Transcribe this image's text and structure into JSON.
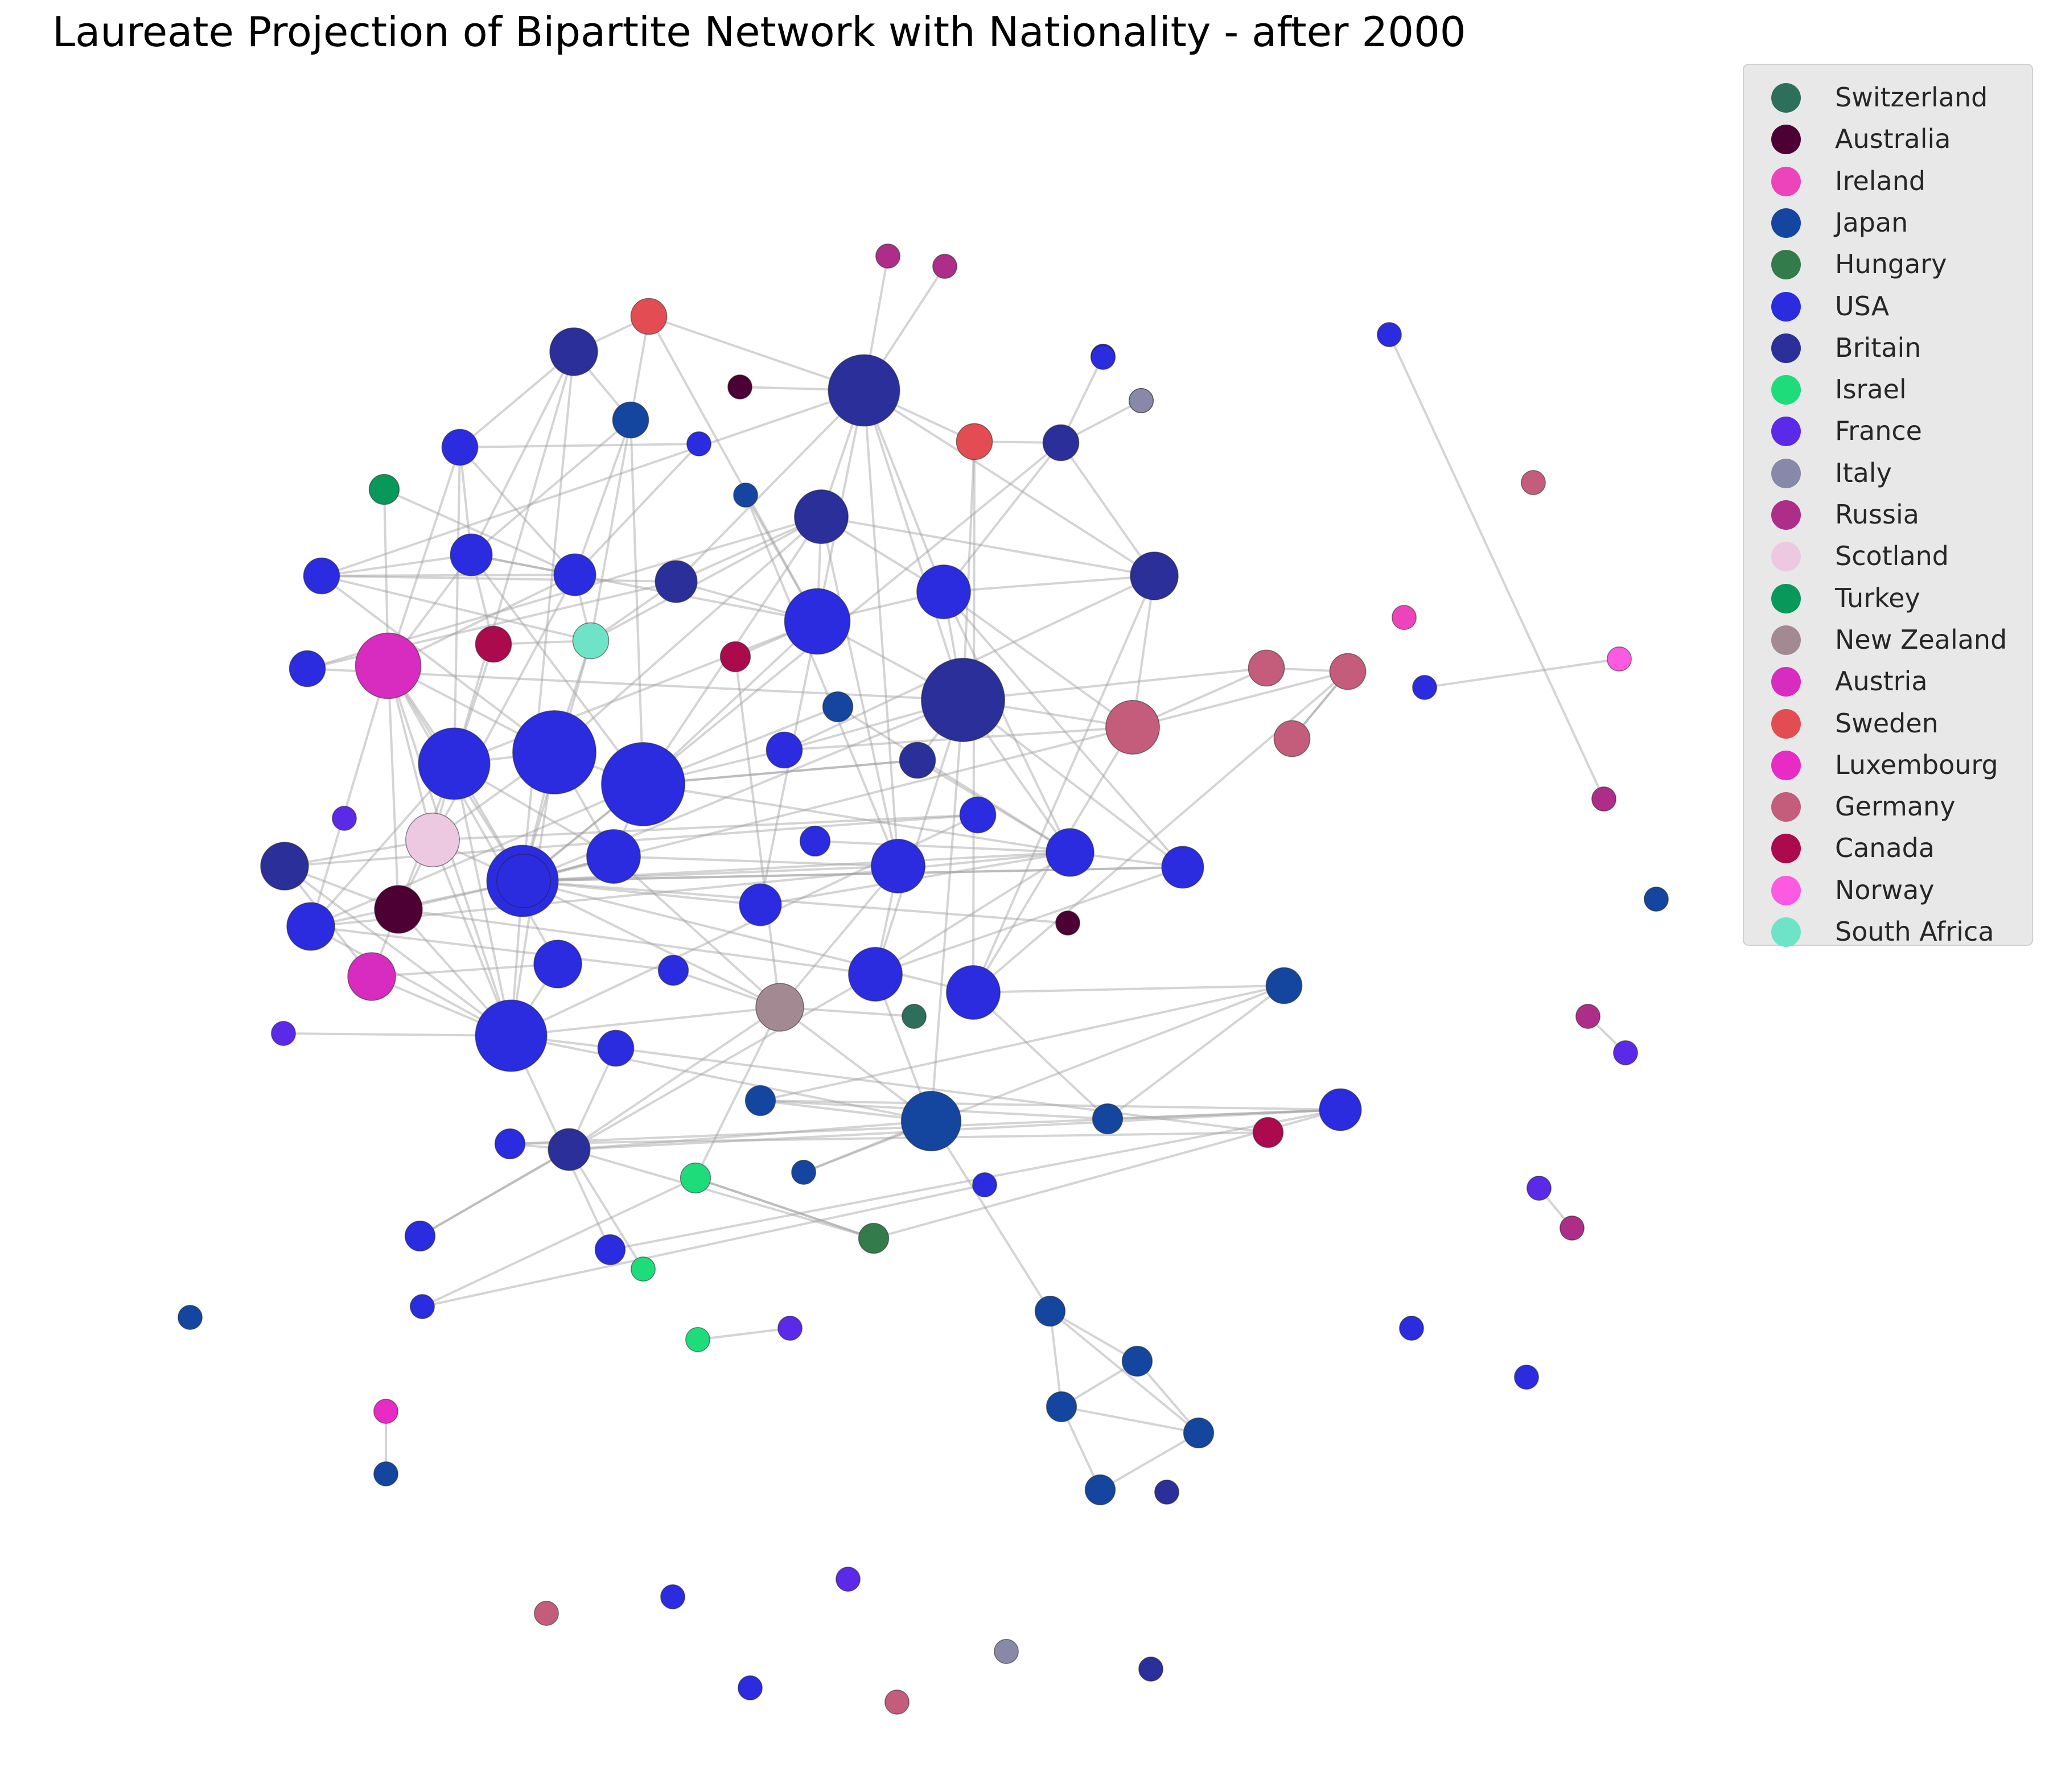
{
  "title": "Laureate Projection of Bipartite Network with Nationality - after 2000",
  "colors": {
    "Switzerland": "#2e6f5c",
    "Australia": "#4d0033",
    "Ireland": "#ee44bb",
    "Japan": "#1446a0",
    "Hungary": "#347b4c",
    "USA": "#2b2be0",
    "Britain": "#2a2f9a",
    "Israel": "#1edc7a",
    "France": "#5a2ae8",
    "Italy": "#8888a8",
    "Russia": "#ad2d88",
    "Scotland": "#ecc9e1",
    "Turkey": "#08985a",
    "New Zealand": "#a38a92",
    "Austria": "#d82bc0",
    "Sweden": "#e44c54",
    "Luxembourg": "#e92bc6",
    "Germany": "#c45c7b",
    "Canada": "#ab0a4c",
    "Norway": "#fb5ae1",
    "South Africa": "#6fe3c7"
  },
  "legend": [
    {
      "label": "Switzerland"
    },
    {
      "label": "Australia"
    },
    {
      "label": "Ireland"
    },
    {
      "label": "Japan"
    },
    {
      "label": "Hungary"
    },
    {
      "label": "USA"
    },
    {
      "label": "Britain"
    },
    {
      "label": "Israel"
    },
    {
      "label": "France"
    },
    {
      "label": "Italy"
    },
    {
      "label": "Russia"
    },
    {
      "label": "Scotland"
    },
    {
      "label": "Turkey"
    },
    {
      "label": "New Zealand"
    },
    {
      "label": "Austria"
    },
    {
      "label": "Sweden"
    },
    {
      "label": "Luxembourg"
    },
    {
      "label": "Germany"
    },
    {
      "label": "Canada"
    },
    {
      "label": "Norway"
    },
    {
      "label": "South Africa"
    }
  ],
  "nodes": [
    {
      "n": "Russia",
      "d": 2
    },
    {
      "n": "Russia",
      "d": 2
    },
    {
      "n": "Sweden",
      "d": 6
    },
    {
      "n": "Britain",
      "d": 10
    },
    {
      "n": "Australia",
      "d": 2
    },
    {
      "n": "Britain",
      "d": 18
    },
    {
      "n": "Japan",
      "d": 6
    },
    {
      "n": "USA",
      "d": 2
    },
    {
      "n": "USA",
      "d": 6
    },
    {
      "n": "Sweden",
      "d": 6
    },
    {
      "n": "Britain",
      "d": 6
    },
    {
      "n": "Britain",
      "d": 2
    },
    {
      "n": "Britain",
      "d": 2
    },
    {
      "n": "Turkey",
      "d": 4
    },
    {
      "n": "Japan",
      "d": 2
    },
    {
      "n": "Britain",
      "d": 12
    },
    {
      "n": "USA",
      "d": 8
    },
    {
      "n": "USA",
      "d": 8
    },
    {
      "n": "USA",
      "d": 6
    },
    {
      "n": "Britain",
      "d": 8
    },
    {
      "n": "USA",
      "d": 16
    },
    {
      "n": "USA",
      "d": 12
    },
    {
      "n": "Britain",
      "d": 10
    },
    {
      "n": "Canada",
      "d": 6
    },
    {
      "n": "South Africa",
      "d": 6
    },
    {
      "n": "Canada",
      "d": 4
    },
    {
      "n": "Austria",
      "d": 16
    },
    {
      "n": "USA",
      "d": 6
    },
    {
      "n": "Britain",
      "d": 22
    },
    {
      "n": "Germany",
      "d": 6
    },
    {
      "n": "Germany",
      "d": 6
    },
    {
      "n": "Germany",
      "d": 12
    },
    {
      "n": "Germany",
      "d": 6
    },
    {
      "n": "Japan",
      "d": 4
    },
    {
      "n": "USA",
      "d": 18
    },
    {
      "n": "USA",
      "d": 22
    },
    {
      "n": "USA",
      "d": 22
    },
    {
      "n": "USA",
      "d": 6
    },
    {
      "n": "Britain",
      "d": 6
    },
    {
      "n": "USA",
      "d": 6
    },
    {
      "n": "France",
      "d": 2
    },
    {
      "n": "Scotland",
      "d": 12
    },
    {
      "n": "USA",
      "d": 4
    },
    {
      "n": "USA",
      "d": 18
    },
    {
      "n": "USA",
      "d": 12
    },
    {
      "n": "Britain",
      "d": 10
    },
    {
      "n": "USA",
      "d": 8
    },
    {
      "n": "USA",
      "d": 12
    },
    {
      "n": "USA",
      "d": 10
    },
    {
      "n": "USA",
      "d": 8
    },
    {
      "n": "Australia",
      "d": 10
    },
    {
      "n": "USA",
      "d": 10
    },
    {
      "n": "USA",
      "d": 12
    },
    {
      "n": "Australia",
      "d": 2
    },
    {
      "n": "USA",
      "d": 10
    },
    {
      "n": "Austria",
      "d": 10
    },
    {
      "n": "USA",
      "d": 4
    },
    {
      "n": "New Zealand",
      "d": 10
    },
    {
      "n": "Switzerland",
      "d": 2
    },
    {
      "n": "USA",
      "d": 12
    },
    {
      "n": "USA",
      "d": 18
    },
    {
      "n": "USA",
      "d": 6
    },
    {
      "n": "France",
      "d": 2
    },
    {
      "n": "USA",
      "d": 12
    },
    {
      "n": "Japan",
      "d": 6
    },
    {
      "n": "Japan",
      "d": 14
    },
    {
      "n": "Japan",
      "d": 4
    },
    {
      "n": "Japan",
      "d": 4
    },
    {
      "n": "USA",
      "d": 2
    },
    {
      "n": "Canada",
      "d": 4
    },
    {
      "n": "USA",
      "d": 4
    },
    {
      "n": "Britain",
      "d": 8
    },
    {
      "n": "Israel",
      "d": 4
    },
    {
      "n": "Japan",
      "d": 2
    },
    {
      "n": "USA",
      "d": 8
    },
    {
      "n": "Hungary",
      "d": 4
    },
    {
      "n": "USA",
      "d": 4
    },
    {
      "n": "USA",
      "d": 4
    },
    {
      "n": "Israel",
      "d": 2
    },
    {
      "n": "USA",
      "d": 2
    },
    {
      "n": "Israel",
      "d": 2
    },
    {
      "n": "France",
      "d": 2
    },
    {
      "n": "Luxembourg",
      "d": 2
    },
    {
      "n": "Japan",
      "d": 2
    },
    {
      "n": "Japan",
      "d": 4
    },
    {
      "n": "Japan",
      "d": 4
    },
    {
      "n": "Japan",
      "d": 4
    },
    {
      "n": "Japan",
      "d": 4
    },
    {
      "n": "Japan",
      "d": 4
    },
    {
      "n": "Britain",
      "d": 2
    },
    {
      "n": "USA",
      "d": 2
    },
    {
      "n": "Italy",
      "d": 2
    },
    {
      "n": "Germany",
      "d": 2
    },
    {
      "n": "Ireland",
      "d": 2
    },
    {
      "n": "Norway",
      "d": 2
    },
    {
      "n": "USA",
      "d": 2
    },
    {
      "n": "USA",
      "d": 2
    },
    {
      "n": "Russia",
      "d": 2
    },
    {
      "n": "Russia",
      "d": 2
    },
    {
      "n": "France",
      "d": 2
    },
    {
      "n": "France",
      "d": 2
    },
    {
      "n": "Russia",
      "d": 2
    },
    {
      "n": "Japan",
      "d": 2
    },
    {
      "n": "USA",
      "d": 2
    },
    {
      "n": "USA",
      "d": 2
    },
    {
      "n": "Japan",
      "d": 2
    },
    {
      "n": "France",
      "d": 2
    },
    {
      "n": "Italy",
      "d": 2
    },
    {
      "n": "Britain",
      "d": 2
    },
    {
      "n": "Germany",
      "d": 2
    },
    {
      "n": "USA",
      "d": 2
    },
    {
      "n": "USA",
      "d": 2
    },
    {
      "n": "Germany",
      "d": 2
    }
  ],
  "edges": [
    [
      0,
      5
    ],
    [
      1,
      5
    ],
    [
      2,
      3
    ],
    [
      2,
      6
    ],
    [
      2,
      5
    ],
    [
      2,
      20
    ],
    [
      3,
      6
    ],
    [
      3,
      8
    ],
    [
      3,
      16
    ],
    [
      3,
      43
    ],
    [
      3,
      34
    ],
    [
      4,
      5
    ],
    [
      5,
      15
    ],
    [
      5,
      18
    ],
    [
      5,
      20
    ],
    [
      5,
      19
    ],
    [
      5,
      47
    ],
    [
      5,
      9
    ],
    [
      5,
      21
    ],
    [
      5,
      28
    ],
    [
      5,
      22
    ],
    [
      6,
      17
    ],
    [
      6,
      16
    ],
    [
      6,
      36
    ],
    [
      6,
      24
    ],
    [
      7,
      8
    ],
    [
      7,
      17
    ],
    [
      8,
      16
    ],
    [
      8,
      26
    ],
    [
      8,
      17
    ],
    [
      8,
      34
    ],
    [
      9,
      28
    ],
    [
      9,
      63
    ],
    [
      9,
      10
    ],
    [
      10,
      11
    ],
    [
      10,
      12
    ],
    [
      10,
      22
    ],
    [
      10,
      21
    ],
    [
      10,
      52
    ],
    [
      13,
      26
    ],
    [
      13,
      17
    ],
    [
      14,
      20
    ],
    [
      14,
      47
    ],
    [
      15,
      22
    ],
    [
      15,
      20
    ],
    [
      15,
      21
    ],
    [
      15,
      35
    ],
    [
      15,
      36
    ],
    [
      15,
      27
    ],
    [
      15,
      47
    ],
    [
      15,
      24
    ],
    [
      16,
      26
    ],
    [
      16,
      17
    ],
    [
      16,
      18
    ],
    [
      16,
      36
    ],
    [
      16,
      23
    ],
    [
      16,
      20
    ],
    [
      17,
      26
    ],
    [
      17,
      41
    ],
    [
      17,
      18
    ],
    [
      17,
      24
    ],
    [
      18,
      19
    ],
    [
      18,
      24
    ],
    [
      18,
      35
    ],
    [
      19,
      20
    ],
    [
      19,
      15
    ],
    [
      19,
      24
    ],
    [
      19,
      27
    ],
    [
      20,
      21
    ],
    [
      20,
      28
    ],
    [
      20,
      36
    ],
    [
      20,
      34
    ],
    [
      20,
      46
    ],
    [
      21,
      28
    ],
    [
      21,
      22
    ],
    [
      21,
      31
    ],
    [
      21,
      49
    ],
    [
      21,
      48
    ],
    [
      22,
      31
    ],
    [
      22,
      63
    ],
    [
      22,
      37
    ],
    [
      23,
      24
    ],
    [
      23,
      34
    ],
    [
      24,
      43
    ],
    [
      24,
      35
    ],
    [
      25,
      20
    ],
    [
      25,
      57
    ],
    [
      26,
      34
    ],
    [
      26,
      41
    ],
    [
      26,
      50
    ],
    [
      26,
      60
    ],
    [
      26,
      43
    ],
    [
      26,
      35
    ],
    [
      26,
      54
    ],
    [
      26,
      51
    ],
    [
      27,
      28
    ],
    [
      28,
      29
    ],
    [
      28,
      31
    ],
    [
      28,
      37
    ],
    [
      28,
      48
    ],
    [
      28,
      49
    ],
    [
      28,
      38
    ],
    [
      28,
      59
    ],
    [
      28,
      65
    ],
    [
      28,
      52
    ],
    [
      29,
      30
    ],
    [
      29,
      31
    ],
    [
      30,
      31
    ],
    [
      30,
      63
    ],
    [
      30,
      32
    ],
    [
      31,
      37
    ],
    [
      31,
      52
    ],
    [
      31,
      63
    ],
    [
      32,
      30
    ],
    [
      33,
      36
    ],
    [
      33,
      48
    ],
    [
      34,
      35
    ],
    [
      34,
      43
    ],
    [
      34,
      41
    ],
    [
      34,
      44
    ],
    [
      34,
      51
    ],
    [
      34,
      60
    ],
    [
      34,
      50
    ],
    [
      35,
      36
    ],
    [
      35,
      41
    ],
    [
      35,
      44
    ],
    [
      35,
      43
    ],
    [
      35,
      60
    ],
    [
      36,
      43
    ],
    [
      36,
      44
    ],
    [
      36,
      37
    ],
    [
      36,
      38
    ],
    [
      36,
      48
    ],
    [
      36,
      51
    ],
    [
      38,
      36
    ],
    [
      38,
      48
    ],
    [
      39,
      45
    ],
    [
      39,
      41
    ],
    [
      39,
      60
    ],
    [
      41,
      50
    ],
    [
      41,
      45
    ],
    [
      41,
      43
    ],
    [
      41,
      60
    ],
    [
      42,
      48
    ],
    [
      43,
      44
    ],
    [
      43,
      60
    ],
    [
      43,
      50
    ],
    [
      43,
      51
    ],
    [
      43,
      47
    ],
    [
      43,
      48
    ],
    [
      44,
      47
    ],
    [
      44,
      52
    ],
    [
      44,
      57
    ],
    [
      45,
      50
    ],
    [
      45,
      55
    ],
    [
      45,
      60
    ],
    [
      46,
      52
    ],
    [
      46,
      48
    ],
    [
      47,
      59
    ],
    [
      47,
      57
    ],
    [
      48,
      59
    ],
    [
      48,
      51
    ],
    [
      48,
      49
    ],
    [
      49,
      52
    ],
    [
      49,
      59
    ],
    [
      50,
      55
    ],
    [
      50,
      60
    ],
    [
      50,
      59
    ],
    [
      51,
      60
    ],
    [
      51,
      56
    ],
    [
      52,
      57
    ],
    [
      52,
      63
    ],
    [
      52,
      49
    ],
    [
      53,
      52
    ],
    [
      54,
      55
    ],
    [
      54,
      60
    ],
    [
      55,
      60
    ],
    [
      56,
      57
    ],
    [
      57,
      60
    ],
    [
      57,
      72
    ],
    [
      57,
      71
    ],
    [
      57,
      65
    ],
    [
      58,
      57
    ],
    [
      59,
      65
    ],
    [
      60,
      61
    ],
    [
      60,
      76
    ],
    [
      60,
      65
    ],
    [
      60,
      62
    ],
    [
      61,
      69
    ],
    [
      61,
      71
    ],
    [
      63,
      67
    ],
    [
      63,
      64
    ],
    [
      64,
      66
    ],
    [
      64,
      67
    ],
    [
      65,
      66
    ],
    [
      65,
      71
    ],
    [
      65,
      73
    ],
    [
      65,
      84
    ],
    [
      66,
      74
    ],
    [
      66,
      67
    ],
    [
      67,
      74
    ],
    [
      69,
      70
    ],
    [
      70,
      71
    ],
    [
      70,
      74
    ],
    [
      71,
      74
    ],
    [
      71,
      77
    ],
    [
      71,
      75
    ],
    [
      72,
      75
    ],
    [
      72,
      79
    ],
    [
      73,
      64
    ],
    [
      74,
      75
    ],
    [
      75,
      72
    ],
    [
      76,
      74
    ],
    [
      77,
      59
    ],
    [
      78,
      71
    ],
    [
      79,
      68
    ],
    [
      80,
      81
    ],
    [
      82,
      83
    ],
    [
      84,
      85
    ],
    [
      84,
      86
    ],
    [
      85,
      86
    ],
    [
      85,
      87
    ],
    [
      86,
      87
    ],
    [
      86,
      88
    ],
    [
      87,
      88
    ],
    [
      84,
      87
    ],
    [
      94,
      95
    ],
    [
      96,
      97
    ],
    [
      98,
      99
    ],
    [
      100,
      101
    ]
  ]
}
